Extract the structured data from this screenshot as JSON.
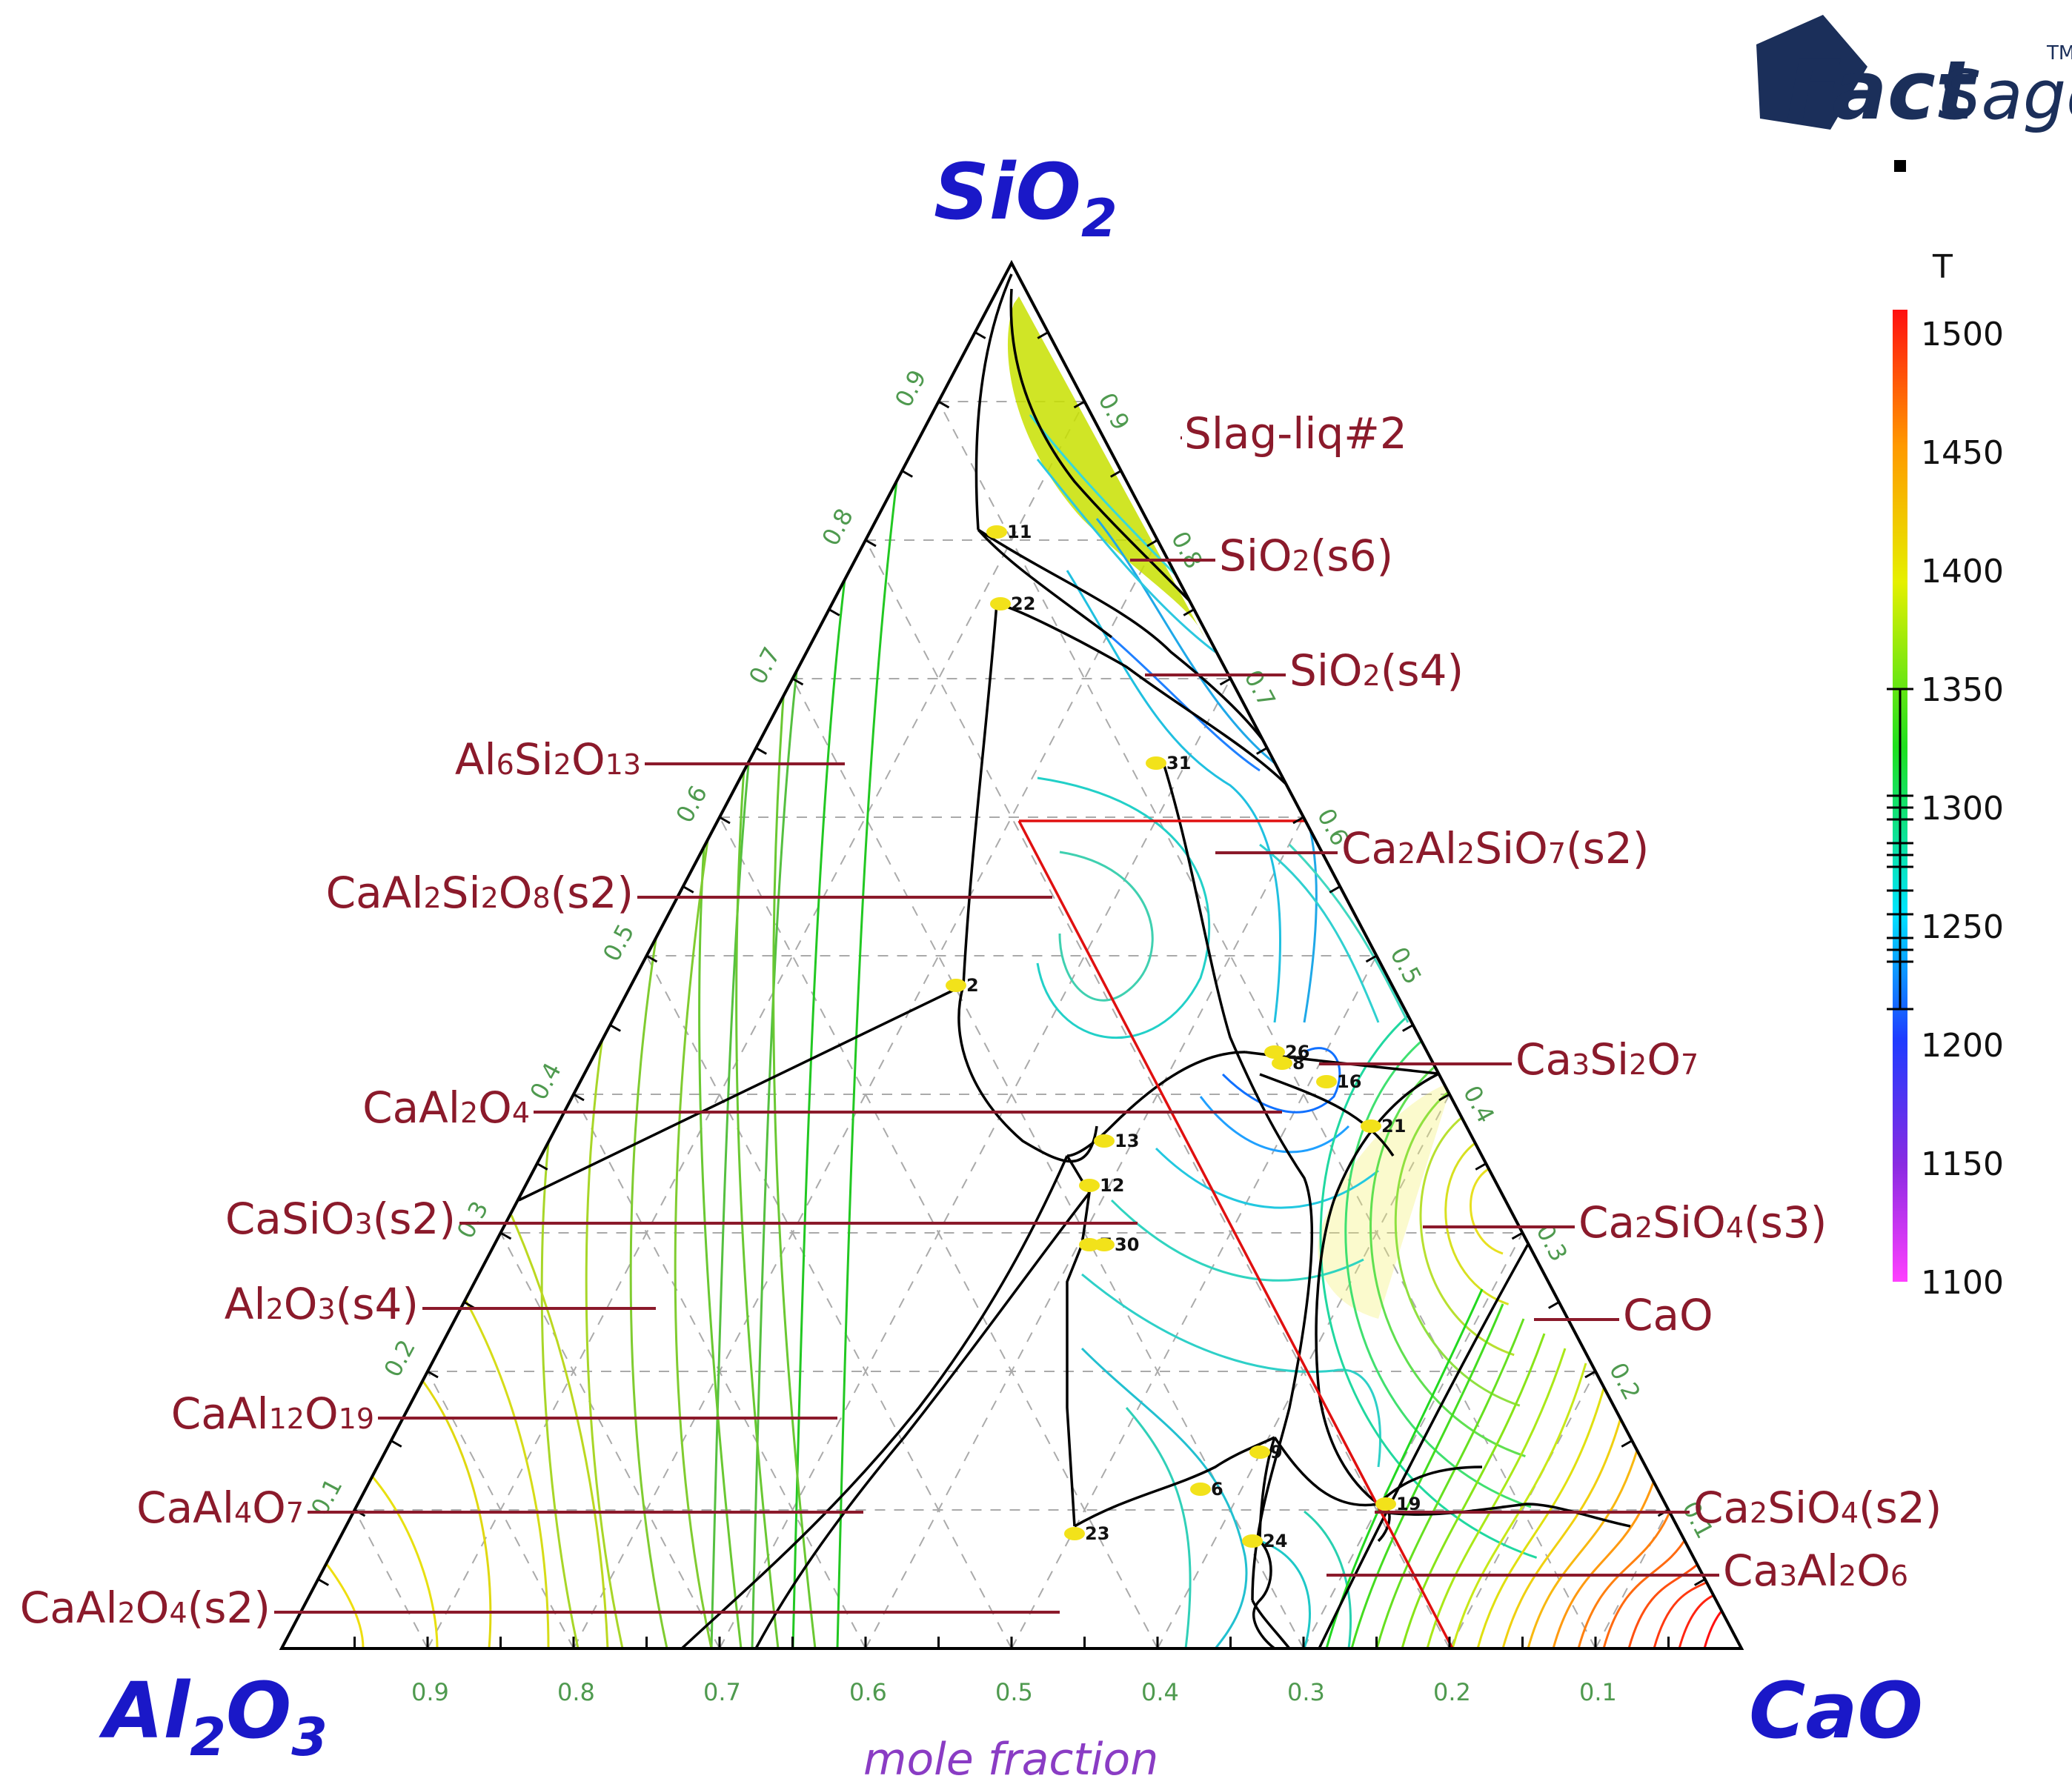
{
  "diagram": {
    "corners": {
      "top": {
        "main": "SiO",
        "sub": "2"
      },
      "left": {
        "main": "Al",
        "sub1": "2",
        "mid": "O",
        "sub2": "3"
      },
      "right": {
        "main": "CaO"
      }
    },
    "axis_caption": "mole fraction",
    "tick_values": [
      "0.9",
      "0.8",
      "0.7",
      "0.6",
      "0.5",
      "0.4",
      "0.3",
      "0.2",
      "0.1"
    ],
    "phase_labels": [
      {
        "side": "right",
        "parts": [
          {
            "t": "Slag-liq#2"
          }
        ]
      },
      {
        "side": "right",
        "parts": [
          {
            "t": "SiO"
          },
          {
            "t": "2",
            "sub": true
          },
          {
            "t": "(s6)"
          }
        ]
      },
      {
        "side": "right",
        "parts": [
          {
            "t": "SiO"
          },
          {
            "t": "2",
            "sub": true
          },
          {
            "t": "(s4)"
          }
        ]
      },
      {
        "side": "right",
        "parts": [
          {
            "t": "Ca"
          },
          {
            "t": "2",
            "sub": true
          },
          {
            "t": "Al"
          },
          {
            "t": "2",
            "sub": true
          },
          {
            "t": "SiO"
          },
          {
            "t": "7",
            "sub": true
          },
          {
            "t": "(s2)"
          }
        ]
      },
      {
        "side": "right",
        "parts": [
          {
            "t": "Ca"
          },
          {
            "t": "3",
            "sub": true
          },
          {
            "t": "Si"
          },
          {
            "t": "2",
            "sub": true
          },
          {
            "t": "O"
          },
          {
            "t": "7",
            "sub": true
          }
        ]
      },
      {
        "side": "right",
        "parts": [
          {
            "t": "Ca"
          },
          {
            "t": "2",
            "sub": true
          },
          {
            "t": "SiO"
          },
          {
            "t": "4",
            "sub": true
          },
          {
            "t": "(s3)"
          }
        ]
      },
      {
        "side": "right",
        "parts": [
          {
            "t": "CaO"
          }
        ]
      },
      {
        "side": "right",
        "parts": [
          {
            "t": "Ca"
          },
          {
            "t": "2",
            "sub": true
          },
          {
            "t": "SiO"
          },
          {
            "t": "4",
            "sub": true
          },
          {
            "t": "(s2)"
          }
        ]
      },
      {
        "side": "right",
        "parts": [
          {
            "t": "Ca"
          },
          {
            "t": "3",
            "sub": true
          },
          {
            "t": "Al"
          },
          {
            "t": "2",
            "sub": true
          },
          {
            "t": "O"
          },
          {
            "t": "6",
            "sub": true
          }
        ]
      },
      {
        "side": "left",
        "parts": [
          {
            "t": "Al"
          },
          {
            "t": "6",
            "sub": true
          },
          {
            "t": "Si"
          },
          {
            "t": "2",
            "sub": true
          },
          {
            "t": "O"
          },
          {
            "t": "13",
            "sub": true
          }
        ]
      },
      {
        "side": "left",
        "parts": [
          {
            "t": "CaAl"
          },
          {
            "t": "2",
            "sub": true
          },
          {
            "t": "Si"
          },
          {
            "t": "2",
            "sub": true
          },
          {
            "t": "O"
          },
          {
            "t": "8",
            "sub": true
          },
          {
            "t": "(s2)"
          }
        ]
      },
      {
        "side": "left",
        "parts": [
          {
            "t": "CaAl"
          },
          {
            "t": "2",
            "sub": true
          },
          {
            "t": "O"
          },
          {
            "t": "4",
            "sub": true
          }
        ]
      },
      {
        "side": "left",
        "parts": [
          {
            "t": "CaSiO"
          },
          {
            "t": "3",
            "sub": true
          },
          {
            "t": "(s2)"
          }
        ]
      },
      {
        "side": "left",
        "parts": [
          {
            "t": "Al"
          },
          {
            "t": "2",
            "sub": true
          },
          {
            "t": "O"
          },
          {
            "t": "3",
            "sub": true
          },
          {
            "t": "(s4)"
          }
        ]
      },
      {
        "side": "left",
        "parts": [
          {
            "t": "CaAl"
          },
          {
            "t": "12",
            "sub": true
          },
          {
            "t": "O"
          },
          {
            "t": "19",
            "sub": true
          }
        ]
      },
      {
        "side": "left",
        "parts": [
          {
            "t": "CaAl"
          },
          {
            "t": "4",
            "sub": true
          },
          {
            "t": "O"
          },
          {
            "t": "7",
            "sub": true
          }
        ]
      },
      {
        "side": "left",
        "parts": [
          {
            "t": "CaAl"
          },
          {
            "t": "2",
            "sub": true
          },
          {
            "t": "O"
          },
          {
            "t": "4",
            "sub": true
          },
          {
            "t": "(s2)"
          }
        ]
      }
    ],
    "invariant_points": [
      "11",
      "22",
      "31",
      "2",
      "26",
      "8",
      "16",
      "21",
      "13",
      "12",
      "7",
      "30",
      "9",
      "6",
      "23",
      "19",
      "24"
    ],
    "colorbar": {
      "title": "T",
      "labels": [
        "1500",
        "1450",
        "1400",
        "1350",
        "1300",
        "1250",
        "1200",
        "1150",
        "1100"
      ],
      "range": [
        1100,
        1510
      ],
      "marked_isotherms": [
        1350,
        1305,
        1300,
        1295,
        1285,
        1280,
        1275,
        1265,
        1255,
        1245,
        1240,
        1235,
        1215
      ]
    },
    "logo": {
      "main": "Fact",
      "second": "Sage",
      "sup": "TM"
    },
    "colors": {
      "corner_text": "#1a18c8",
      "phase_text": "#8b1a2b",
      "caption_text": "#8a3cc4",
      "tick_text": "#4f9a4f",
      "leader_line": "#8b1a2b",
      "section_line": "#e01010"
    }
  }
}
